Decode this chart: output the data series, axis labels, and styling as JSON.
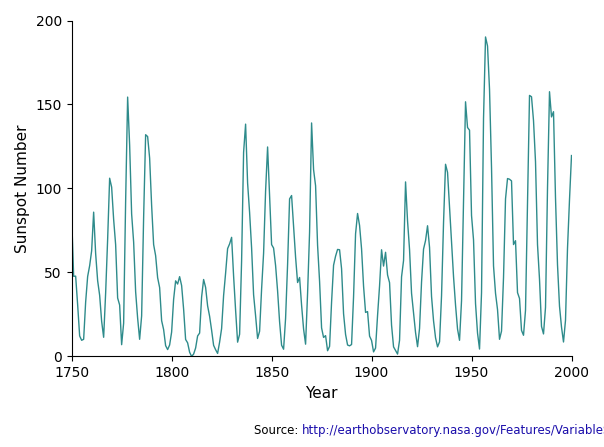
{
  "title": "",
  "xlabel": "Year",
  "ylabel": "Sunspot Number",
  "xlim": [
    1750,
    2000
  ],
  "ylim": [
    0,
    200
  ],
  "yticks": [
    0,
    50,
    100,
    150,
    200
  ],
  "xticks": [
    1750,
    1800,
    1850,
    1900,
    1950,
    2000
  ],
  "line_color": "#2e8b8b",
  "line_width": 1.0,
  "source_label": "Source: ",
  "source_url": "http://earthobservatory.nasa.gov/Features/VariableSun/",
  "background_color": "#ffffff",
  "sunspot_data": [
    [
      1750,
      83.4
    ],
    [
      1751,
      47.7
    ],
    [
      1752,
      47.8
    ],
    [
      1753,
      30.7
    ],
    [
      1754,
      12.2
    ],
    [
      1755,
      9.6
    ],
    [
      1756,
      10.2
    ],
    [
      1757,
      32.4
    ],
    [
      1758,
      47.6
    ],
    [
      1759,
      54.0
    ],
    [
      1760,
      62.9
    ],
    [
      1761,
      85.9
    ],
    [
      1762,
      61.2
    ],
    [
      1763,
      45.1
    ],
    [
      1764,
      36.4
    ],
    [
      1765,
      20.9
    ],
    [
      1766,
      11.4
    ],
    [
      1767,
      37.8
    ],
    [
      1768,
      69.8
    ],
    [
      1769,
      106.1
    ],
    [
      1770,
      100.8
    ],
    [
      1771,
      81.6
    ],
    [
      1772,
      66.5
    ],
    [
      1773,
      34.8
    ],
    [
      1774,
      30.6
    ],
    [
      1775,
      7.0
    ],
    [
      1776,
      19.8
    ],
    [
      1777,
      92.5
    ],
    [
      1778,
      154.4
    ],
    [
      1779,
      125.9
    ],
    [
      1780,
      84.8
    ],
    [
      1781,
      68.1
    ],
    [
      1782,
      38.5
    ],
    [
      1783,
      22.8
    ],
    [
      1784,
      10.2
    ],
    [
      1785,
      24.1
    ],
    [
      1786,
      82.9
    ],
    [
      1787,
      132.0
    ],
    [
      1788,
      130.9
    ],
    [
      1789,
      118.1
    ],
    [
      1790,
      89.9
    ],
    [
      1791,
      66.6
    ],
    [
      1792,
      60.0
    ],
    [
      1793,
      46.9
    ],
    [
      1794,
      41.0
    ],
    [
      1795,
      21.3
    ],
    [
      1796,
      16.0
    ],
    [
      1797,
      6.4
    ],
    [
      1798,
      4.1
    ],
    [
      1799,
      6.8
    ],
    [
      1800,
      14.5
    ],
    [
      1801,
      34.0
    ],
    [
      1802,
      45.0
    ],
    [
      1803,
      43.1
    ],
    [
      1804,
      47.5
    ],
    [
      1805,
      42.2
    ],
    [
      1806,
      28.1
    ],
    [
      1807,
      10.1
    ],
    [
      1808,
      8.1
    ],
    [
      1809,
      2.5
    ],
    [
      1810,
      0.0
    ],
    [
      1811,
      1.4
    ],
    [
      1812,
      5.0
    ],
    [
      1813,
      12.2
    ],
    [
      1814,
      13.9
    ],
    [
      1815,
      35.4
    ],
    [
      1816,
      45.8
    ],
    [
      1817,
      41.1
    ],
    [
      1818,
      30.1
    ],
    [
      1819,
      23.9
    ],
    [
      1820,
      15.6
    ],
    [
      1821,
      6.6
    ],
    [
      1822,
      4.0
    ],
    [
      1823,
      1.8
    ],
    [
      1824,
      8.5
    ],
    [
      1825,
      16.6
    ],
    [
      1826,
      36.3
    ],
    [
      1827,
      49.6
    ],
    [
      1828,
      64.2
    ],
    [
      1829,
      67.0
    ],
    [
      1830,
      70.9
    ],
    [
      1831,
      47.8
    ],
    [
      1832,
      27.5
    ],
    [
      1833,
      8.5
    ],
    [
      1834,
      13.2
    ],
    [
      1835,
      56.9
    ],
    [
      1836,
      121.5
    ],
    [
      1837,
      138.3
    ],
    [
      1838,
      103.2
    ],
    [
      1839,
      85.7
    ],
    [
      1840,
      64.6
    ],
    [
      1841,
      36.7
    ],
    [
      1842,
      24.2
    ],
    [
      1843,
      10.7
    ],
    [
      1844,
      15.0
    ],
    [
      1845,
      40.1
    ],
    [
      1846,
      61.5
    ],
    [
      1847,
      98.5
    ],
    [
      1848,
      124.7
    ],
    [
      1849,
      96.3
    ],
    [
      1850,
      66.6
    ],
    [
      1851,
      64.5
    ],
    [
      1852,
      54.1
    ],
    [
      1853,
      39.0
    ],
    [
      1854,
      20.6
    ],
    [
      1855,
      6.7
    ],
    [
      1856,
      4.3
    ],
    [
      1857,
      22.7
    ],
    [
      1858,
      54.8
    ],
    [
      1859,
      93.8
    ],
    [
      1860,
      95.8
    ],
    [
      1861,
      77.2
    ],
    [
      1862,
      59.1
    ],
    [
      1863,
      44.0
    ],
    [
      1864,
      47.0
    ],
    [
      1865,
      30.5
    ],
    [
      1866,
      16.3
    ],
    [
      1867,
      7.3
    ],
    [
      1868,
      37.6
    ],
    [
      1869,
      74.0
    ],
    [
      1870,
      139.0
    ],
    [
      1871,
      111.2
    ],
    [
      1872,
      101.6
    ],
    [
      1873,
      66.2
    ],
    [
      1874,
      44.7
    ],
    [
      1875,
      17.0
    ],
    [
      1876,
      11.3
    ],
    [
      1877,
      12.4
    ],
    [
      1878,
      3.4
    ],
    [
      1879,
      6.0
    ],
    [
      1880,
      32.3
    ],
    [
      1881,
      54.3
    ],
    [
      1882,
      59.7
    ],
    [
      1883,
      63.7
    ],
    [
      1884,
      63.5
    ],
    [
      1885,
      52.2
    ],
    [
      1886,
      25.4
    ],
    [
      1887,
      13.1
    ],
    [
      1888,
      6.8
    ],
    [
      1889,
      6.3
    ],
    [
      1890,
      7.1
    ],
    [
      1891,
      35.6
    ],
    [
      1892,
      73.0
    ],
    [
      1893,
      85.1
    ],
    [
      1894,
      78.0
    ],
    [
      1895,
      64.0
    ],
    [
      1896,
      41.8
    ],
    [
      1897,
      26.2
    ],
    [
      1898,
      26.7
    ],
    [
      1899,
      12.1
    ],
    [
      1900,
      9.5
    ],
    [
      1901,
      2.7
    ],
    [
      1902,
      5.0
    ],
    [
      1903,
      24.4
    ],
    [
      1904,
      42.0
    ],
    [
      1905,
      63.5
    ],
    [
      1906,
      53.8
    ],
    [
      1907,
      62.0
    ],
    [
      1908,
      48.5
    ],
    [
      1909,
      43.9
    ],
    [
      1910,
      18.6
    ],
    [
      1911,
      5.7
    ],
    [
      1912,
      3.6
    ],
    [
      1913,
      1.4
    ],
    [
      1914,
      9.6
    ],
    [
      1915,
      47.4
    ],
    [
      1916,
      57.1
    ],
    [
      1917,
      103.9
    ],
    [
      1918,
      80.6
    ],
    [
      1919,
      63.6
    ],
    [
      1920,
      37.6
    ],
    [
      1921,
      26.1
    ],
    [
      1922,
      14.2
    ],
    [
      1923,
      5.8
    ],
    [
      1924,
      16.7
    ],
    [
      1925,
      44.3
    ],
    [
      1926,
      63.9
    ],
    [
      1927,
      69.0
    ],
    [
      1928,
      77.8
    ],
    [
      1929,
      64.9
    ],
    [
      1930,
      35.7
    ],
    [
      1931,
      21.2
    ],
    [
      1932,
      11.1
    ],
    [
      1933,
      5.7
    ],
    [
      1934,
      8.7
    ],
    [
      1935,
      36.1
    ],
    [
      1936,
      79.7
    ],
    [
      1937,
      114.4
    ],
    [
      1938,
      109.6
    ],
    [
      1939,
      88.8
    ],
    [
      1940,
      67.8
    ],
    [
      1941,
      47.5
    ],
    [
      1942,
      30.6
    ],
    [
      1943,
      16.3
    ],
    [
      1944,
      9.6
    ],
    [
      1945,
      33.2
    ],
    [
      1946,
      92.6
    ],
    [
      1947,
      151.6
    ],
    [
      1948,
      136.3
    ],
    [
      1949,
      134.7
    ],
    [
      1950,
      83.9
    ],
    [
      1951,
      69.4
    ],
    [
      1952,
      31.5
    ],
    [
      1953,
      13.9
    ],
    [
      1954,
      4.4
    ],
    [
      1955,
      38.0
    ],
    [
      1956,
      141.7
    ],
    [
      1957,
      190.2
    ],
    [
      1958,
      184.8
    ],
    [
      1959,
      159.0
    ],
    [
      1960,
      112.3
    ],
    [
      1961,
      53.9
    ],
    [
      1962,
      37.6
    ],
    [
      1963,
      27.9
    ],
    [
      1964,
      10.2
    ],
    [
      1965,
      15.1
    ],
    [
      1966,
      47.0
    ],
    [
      1967,
      93.8
    ],
    [
      1968,
      105.9
    ],
    [
      1969,
      105.5
    ],
    [
      1970,
      104.5
    ],
    [
      1971,
      66.6
    ],
    [
      1972,
      68.9
    ],
    [
      1973,
      38.0
    ],
    [
      1974,
      34.5
    ],
    [
      1975,
      15.5
    ],
    [
      1976,
      12.6
    ],
    [
      1977,
      27.5
    ],
    [
      1978,
      92.5
    ],
    [
      1979,
      155.4
    ],
    [
      1980,
      154.6
    ],
    [
      1981,
      140.4
    ],
    [
      1982,
      115.9
    ],
    [
      1983,
      66.6
    ],
    [
      1984,
      45.9
    ],
    [
      1985,
      17.9
    ],
    [
      1986,
      13.4
    ],
    [
      1987,
      29.2
    ],
    [
      1988,
      100.2
    ],
    [
      1989,
      157.6
    ],
    [
      1990,
      142.6
    ],
    [
      1991,
      145.7
    ],
    [
      1992,
      94.3
    ],
    [
      1993,
      54.6
    ],
    [
      1994,
      29.9
    ],
    [
      1995,
      17.5
    ],
    [
      1996,
      8.6
    ],
    [
      1997,
      21.5
    ],
    [
      1998,
      64.3
    ],
    [
      1999,
      93.3
    ],
    [
      2000,
      119.6
    ]
  ]
}
